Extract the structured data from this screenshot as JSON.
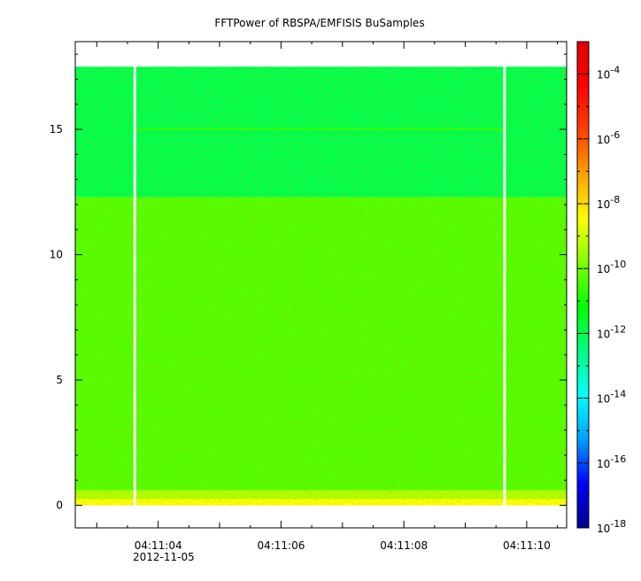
{
  "chart_data": {
    "type": "heatmap",
    "title": "FFTPower of RBSPA/EMFISIS  BuSamples",
    "xlabel": "",
    "ylabel": "",
    "x_date_label": "2012-11-05",
    "x_tick_labels": [
      "04:11:04",
      "04:11:06",
      "04:11:08",
      "04:11:10"
    ],
    "x_tick_seconds": [
      4,
      6,
      8,
      10
    ],
    "xlim_seconds": [
      2.65,
      10.65
    ],
    "data_x_range_seconds": [
      2.65,
      10.65
    ],
    "gaps_x_seconds": [
      3.62,
      9.64
    ],
    "y_tick_labels": [
      "0",
      "5",
      "10",
      "15"
    ],
    "y_tick_values": [
      0,
      5,
      10,
      15
    ],
    "ylim": [
      -0.9,
      18.5
    ],
    "data_y_range": [
      0,
      17.5
    ],
    "bands": [
      {
        "y_range": [
          0,
          0.25
        ],
        "log10_power": -8.5
      },
      {
        "y_range": [
          0.25,
          0.6
        ],
        "log10_power": -9.3
      },
      {
        "y_range": [
          0.6,
          12.3
        ],
        "log10_power": -10.3
      },
      {
        "y_range": [
          12.3,
          17.5
        ],
        "log10_power": -12.0
      }
    ],
    "lines": [
      {
        "y": 15.0,
        "x_range_seconds": [
          3.62,
          9.64
        ],
        "log10_power": -10.6
      }
    ],
    "colorbar": {
      "scale": "log",
      "range": [
        1e-18,
        0.001
      ],
      "tick_labels": [
        {
          "base": "10",
          "exp": "-4"
        },
        {
          "base": "10",
          "exp": "-6"
        },
        {
          "base": "10",
          "exp": "-8"
        },
        {
          "base": "10",
          "exp": "-10"
        },
        {
          "base": "10",
          "exp": "-12"
        },
        {
          "base": "10",
          "exp": "-14"
        },
        {
          "base": "10",
          "exp": "-16"
        },
        {
          "base": "10",
          "exp": "-18"
        }
      ],
      "tick_exponents": [
        -4,
        -6,
        -8,
        -10,
        -12,
        -14,
        -16,
        -18
      ],
      "colormap": [
        "#00008c",
        "#0000ff",
        "#00a0ff",
        "#00ffff",
        "#00ff80",
        "#00ff00",
        "#80ff00",
        "#ffff00",
        "#ffa000",
        "#ff4000",
        "#ff0000",
        "#e00000"
      ]
    }
  }
}
